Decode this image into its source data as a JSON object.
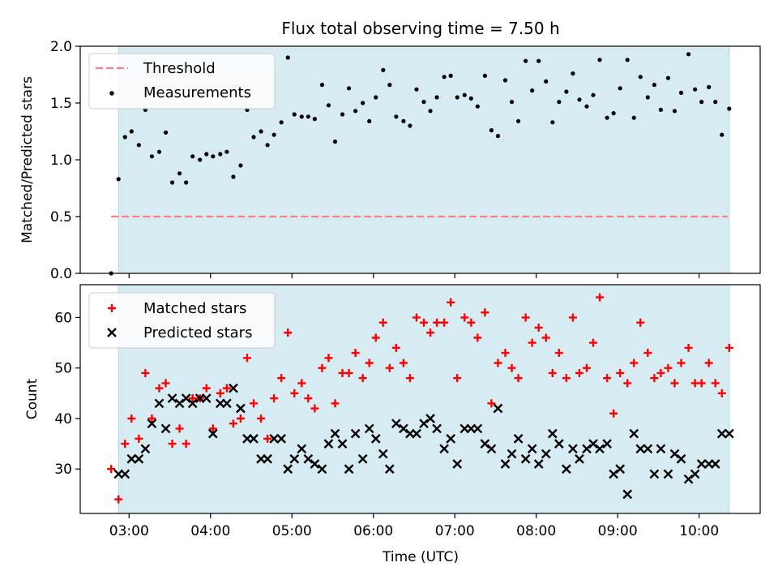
{
  "title": "Flux total observing time = 7.50 h",
  "chart_data": [
    {
      "type": "scatter",
      "ylabel": "Matched/Predicted stars",
      "xlim": [
        2.4,
        10.75
      ],
      "ylim": [
        0,
        2.0
      ],
      "yticks": [
        0.0,
        0.5,
        1.0,
        1.5,
        2.0
      ],
      "ytick_labels": [
        "0.0",
        "0.5",
        "1.0",
        "1.5",
        "2.0"
      ],
      "shaded_span": [
        2.87,
        10.37
      ],
      "threshold": {
        "name": "Threshold",
        "value": 0.5,
        "x": [
          2.78,
          10.35
        ],
        "color": "#ff7f7f"
      },
      "legend": {
        "location": "top-left",
        "entries": [
          "Threshold",
          "Measurements"
        ]
      },
      "series": [
        {
          "name": "Measurements",
          "color": "#000000",
          "x": [
            2.78,
            2.87,
            2.95,
            3.03,
            3.12,
            3.2,
            3.28,
            3.37,
            3.45,
            3.53,
            3.62,
            3.7,
            3.78,
            3.87,
            3.95,
            4.03,
            4.12,
            4.2,
            4.28,
            4.37,
            4.45,
            4.53,
            4.62,
            4.7,
            4.78,
            4.87,
            4.95,
            5.03,
            5.12,
            5.2,
            5.28,
            5.37,
            5.45,
            5.53,
            5.62,
            5.7,
            5.78,
            5.87,
            5.95,
            6.03,
            6.12,
            6.2,
            6.28,
            6.37,
            6.45,
            6.53,
            6.62,
            6.7,
            6.78,
            6.87,
            6.95,
            7.03,
            7.12,
            7.2,
            7.28,
            7.37,
            7.45,
            7.53,
            7.62,
            7.7,
            7.78,
            7.87,
            7.95,
            8.03,
            8.12,
            8.2,
            8.28,
            8.37,
            8.45,
            8.53,
            8.62,
            8.7,
            8.78,
            8.87,
            8.95,
            9.03,
            9.12,
            9.2,
            9.28,
            9.37,
            9.45,
            9.53,
            9.62,
            9.7,
            9.78,
            9.87,
            9.95,
            10.03,
            10.12,
            10.2,
            10.28,
            10.37
          ],
          "y": [
            0.0,
            0.83,
            1.2,
            1.25,
            1.13,
            1.44,
            1.03,
            1.07,
            1.24,
            0.8,
            0.88,
            0.8,
            1.03,
            1.0,
            1.05,
            1.03,
            1.05,
            1.07,
            0.85,
            0.95,
            1.44,
            1.2,
            1.25,
            1.13,
            1.22,
            1.33,
            1.9,
            1.4,
            1.38,
            1.38,
            1.36,
            1.66,
            1.48,
            1.16,
            1.4,
            1.63,
            1.43,
            1.5,
            1.34,
            1.55,
            1.79,
            1.66,
            1.38,
            1.34,
            1.3,
            1.62,
            1.51,
            1.43,
            1.55,
            1.73,
            1.74,
            1.55,
            1.57,
            1.54,
            1.47,
            1.74,
            1.26,
            1.21,
            1.7,
            1.51,
            1.34,
            1.87,
            1.61,
            1.87,
            1.69,
            1.33,
            1.51,
            1.6,
            1.76,
            1.53,
            1.47,
            1.57,
            1.88,
            1.37,
            1.41,
            1.63,
            1.88,
            1.37,
            1.73,
            1.55,
            1.66,
            1.44,
            1.72,
            1.43,
            1.59,
            1.93,
            1.62,
            1.51,
            1.64,
            1.51,
            1.22,
            1.45
          ]
        }
      ]
    },
    {
      "type": "scatter",
      "xlabel": "Time (UTC)",
      "ylabel": "Count",
      "xlim": [
        2.4,
        10.75
      ],
      "ylim": [
        21.2,
        66.5
      ],
      "xticks": [
        3,
        4,
        5,
        6,
        7,
        8,
        9,
        10
      ],
      "xtick_labels": [
        "03:00",
        "04:00",
        "05:00",
        "06:00",
        "07:00",
        "08:00",
        "09:00",
        "10:00"
      ],
      "yticks": [
        30,
        40,
        50,
        60
      ],
      "ytick_labels": [
        "30",
        "40",
        "50",
        "60"
      ],
      "shaded_span": [
        2.87,
        10.37
      ],
      "legend": {
        "location": "top-left",
        "entries": [
          "Matched stars",
          "Predicted stars"
        ]
      },
      "series": [
        {
          "name": "Matched stars",
          "marker": "plus",
          "color": "#ff0000",
          "x": [
            2.78,
            2.87,
            2.95,
            3.03,
            3.12,
            3.2,
            3.28,
            3.37,
            3.45,
            3.53,
            3.62,
            3.7,
            3.78,
            3.87,
            3.95,
            4.03,
            4.12,
            4.2,
            4.28,
            4.37,
            4.45,
            4.53,
            4.62,
            4.7,
            4.78,
            4.87,
            4.95,
            5.03,
            5.12,
            5.2,
            5.28,
            5.37,
            5.45,
            5.53,
            5.62,
            5.7,
            5.78,
            5.87,
            5.95,
            6.03,
            6.12,
            6.2,
            6.28,
            6.37,
            6.45,
            6.53,
            6.62,
            6.7,
            6.78,
            6.87,
            6.95,
            7.03,
            7.12,
            7.2,
            7.28,
            7.37,
            7.45,
            7.53,
            7.62,
            7.7,
            7.78,
            7.87,
            7.95,
            8.03,
            8.12,
            8.2,
            8.28,
            8.37,
            8.45,
            8.53,
            8.62,
            8.7,
            8.78,
            8.87,
            8.95,
            9.03,
            9.12,
            9.2,
            9.28,
            9.37,
            9.45,
            9.53,
            9.62,
            9.7,
            9.78,
            9.87,
            9.95,
            10.03,
            10.12,
            10.2,
            10.28,
            10.37
          ],
          "y": [
            30,
            24,
            35,
            40,
            36,
            49,
            40,
            46,
            47,
            35,
            38,
            35,
            44,
            44,
            46,
            38,
            45,
            46,
            39,
            40,
            52,
            43,
            40,
            36,
            44,
            48,
            57,
            45,
            47,
            44,
            42,
            50,
            52,
            43,
            49,
            49,
            53,
            48,
            51,
            56,
            59,
            50,
            54,
            51,
            48,
            60,
            59,
            57,
            59,
            59,
            63,
            48,
            60,
            59,
            56,
            61,
            43,
            51,
            53,
            50,
            48,
            60,
            55,
            58,
            56,
            49,
            53,
            48,
            60,
            49,
            50,
            55,
            64,
            48,
            41,
            49,
            47,
            51,
            59,
            53,
            48,
            49,
            50,
            47,
            51,
            54,
            47,
            47,
            51,
            47,
            45,
            54
          ]
        },
        {
          "name": "Predicted stars",
          "marker": "x",
          "color": "#000000",
          "x": [
            2.87,
            2.95,
            3.03,
            3.12,
            3.2,
            3.28,
            3.37,
            3.45,
            3.53,
            3.62,
            3.7,
            3.78,
            3.87,
            3.95,
            4.03,
            4.12,
            4.2,
            4.28,
            4.37,
            4.45,
            4.53,
            4.62,
            4.7,
            4.78,
            4.87,
            4.95,
            5.03,
            5.12,
            5.2,
            5.28,
            5.37,
            5.45,
            5.53,
            5.62,
            5.7,
            5.78,
            5.87,
            5.95,
            6.03,
            6.12,
            6.2,
            6.28,
            6.37,
            6.45,
            6.53,
            6.62,
            6.7,
            6.78,
            6.87,
            6.95,
            7.03,
            7.12,
            7.2,
            7.28,
            7.37,
            7.45,
            7.53,
            7.62,
            7.7,
            7.78,
            7.87,
            7.95,
            8.03,
            8.12,
            8.2,
            8.28,
            8.37,
            8.45,
            8.53,
            8.62,
            8.7,
            8.78,
            8.87,
            8.95,
            9.03,
            9.12,
            9.2,
            9.28,
            9.37,
            9.45,
            9.53,
            9.62,
            9.7,
            9.78,
            9.87,
            9.95,
            10.03,
            10.12,
            10.2,
            10.28,
            10.37
          ],
          "y": [
            29,
            29,
            32,
            32,
            34,
            39,
            43,
            38,
            44,
            43,
            44,
            43,
            44,
            44,
            37,
            43,
            43,
            46,
            42,
            36,
            36,
            32,
            32,
            36,
            36,
            30,
            32,
            34,
            32,
            31,
            30,
            35,
            37,
            35,
            30,
            37,
            32,
            38,
            36,
            33,
            30,
            39,
            38,
            37,
            37,
            39,
            40,
            38,
            34,
            36,
            31,
            38,
            38,
            38,
            35,
            34,
            42,
            31,
            33,
            36,
            32,
            34,
            31,
            33,
            37,
            35,
            30,
            34,
            32,
            34,
            35,
            34,
            35,
            29,
            30,
            25,
            37,
            34,
            34,
            29,
            34,
            29,
            33,
            32,
            28,
            29,
            31,
            31,
            31,
            37,
            37
          ]
        }
      ]
    }
  ]
}
